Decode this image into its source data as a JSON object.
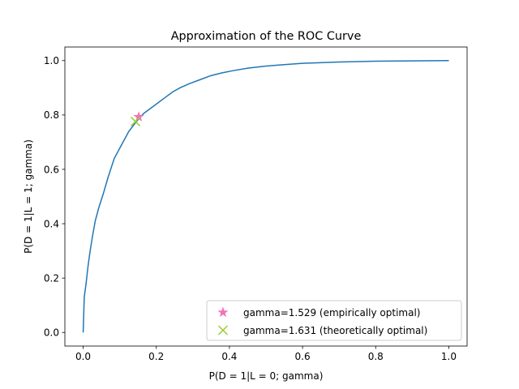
{
  "chart_data": {
    "type": "line",
    "title": "Approximation of the ROC Curve",
    "xlabel": "P(D = 1|L = 0; gamma)",
    "ylabel": "P(D = 1|L = 1; gamma)",
    "xlim": [
      -0.05,
      1.05
    ],
    "ylim": [
      -0.05,
      1.05
    ],
    "xticks": [
      0.0,
      0.2,
      0.4,
      0.6,
      0.8,
      1.0
    ],
    "yticks": [
      0.0,
      0.2,
      0.4,
      0.6,
      0.8,
      1.0
    ],
    "xtick_labels": [
      "0.0",
      "0.2",
      "0.4",
      "0.6",
      "0.8",
      "1.0"
    ],
    "ytick_labels": [
      "0.0",
      "0.2",
      "0.4",
      "0.6",
      "0.8",
      "1.0"
    ],
    "grid": false,
    "legend_placement": "lower-right",
    "series": [
      {
        "color": "#1f77b4",
        "x": [
          0.0,
          0.003,
          0.008,
          0.013,
          0.018,
          0.025,
          0.033,
          0.043,
          0.055,
          0.068,
          0.085,
          0.105,
          0.125,
          0.145,
          0.165,
          0.185,
          0.205,
          0.225,
          0.245,
          0.265,
          0.29,
          0.32,
          0.35,
          0.38,
          0.41,
          0.45,
          0.5,
          0.55,
          0.6,
          0.7,
          0.8,
          0.9,
          1.0
        ],
        "y": [
          0.0,
          0.13,
          0.18,
          0.24,
          0.29,
          0.35,
          0.41,
          0.46,
          0.51,
          0.57,
          0.64,
          0.69,
          0.74,
          0.775,
          0.805,
          0.825,
          0.845,
          0.865,
          0.885,
          0.9,
          0.915,
          0.93,
          0.945,
          0.955,
          0.963,
          0.972,
          0.98,
          0.985,
          0.99,
          0.995,
          0.998,
          0.999,
          1.0
        ]
      }
    ],
    "markers": [
      {
        "name": "gamma=1.529 (empirically optimal)",
        "symbol": "star",
        "color": "#f472b6",
        "x": 0.152,
        "y": 0.793
      },
      {
        "name": "gamma=1.631 (theoretically optimal)",
        "symbol": "x",
        "color": "#9acd32",
        "x": 0.143,
        "y": 0.776
      }
    ]
  }
}
